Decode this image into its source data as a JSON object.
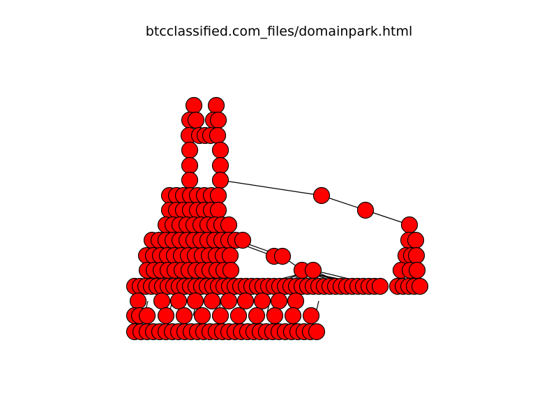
{
  "title": "btcclassified.com_files/domainpark.html",
  "graph": {
    "node_fill": "#ff0000",
    "node_stroke": "#000000",
    "edge_color": "#000000",
    "layout": "hierarchical tree of red circular nodes connected by black edges"
  }
}
